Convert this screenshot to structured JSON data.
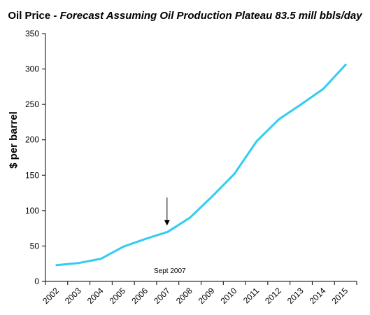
{
  "chart_data": {
    "type": "line",
    "title_main": "Oil Price - ",
    "title_sub": "Forecast  Assuming Oil Production Plateau 83.5 mill bbls/day",
    "xlabel": "",
    "ylabel": "$ per barrel",
    "ylim": [
      0,
      350
    ],
    "yticks": [
      0,
      50,
      100,
      150,
      200,
      250,
      300,
      350
    ],
    "categories": [
      "2002",
      "2003",
      "2004",
      "2005",
      "2006",
      "2007",
      "2008",
      "2009",
      "2010",
      "2011",
      "2012",
      "2013",
      "2014",
      "2015"
    ],
    "series": [
      {
        "color": "#33ccf0",
        "values": [
          23,
          26,
          32,
          49,
          60,
          70,
          90,
          120,
          152,
          198,
          229,
          250,
          272,
          306
        ]
      }
    ],
    "annotations": [
      {
        "text": "Sept 2007",
        "x": "2007",
        "arrow_value": 70
      }
    ],
    "grid": false,
    "legend": "none"
  }
}
